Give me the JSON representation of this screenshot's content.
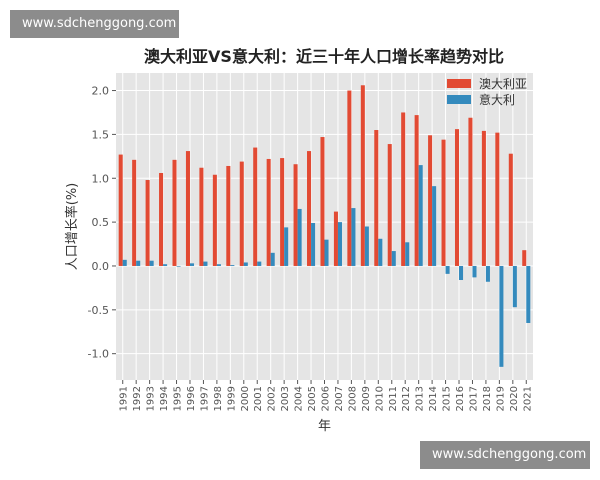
{
  "watermarks": {
    "top": "www.sdchenggong.com",
    "bottom": "www.sdchenggong.com"
  },
  "colors": {
    "australia": "#e24a33",
    "italy": "#348abd",
    "plot_bg": "#e5e5e5",
    "grid": "#ffffff",
    "text": "#555555"
  },
  "chart_data": {
    "type": "bar",
    "title": "澳大利亚VS意大利：近三十年人口增长率趋势对比",
    "xlabel": "年",
    "ylabel": "人口增长率(%)",
    "ylim": [
      -1.3,
      2.2
    ],
    "yticks": [
      -1.0,
      -0.5,
      0.0,
      0.5,
      1.0,
      1.5,
      2.0
    ],
    "ytick_labels": [
      "-1.0",
      "-0.5",
      "0.0",
      "0.5",
      "1.0",
      "1.5",
      "2.0"
    ],
    "grid": true,
    "legend_position": "top-right",
    "categories": [
      "1991",
      "1992",
      "1993",
      "1994",
      "1995",
      "1996",
      "1997",
      "1998",
      "1999",
      "2000",
      "2001",
      "2002",
      "2003",
      "2004",
      "2005",
      "2006",
      "2007",
      "2008",
      "2009",
      "2010",
      "2011",
      "2012",
      "2013",
      "2014",
      "2015",
      "2016",
      "2017",
      "2018",
      "2019",
      "2020",
      "2021"
    ],
    "series": [
      {
        "name": "澳大利亚",
        "color": "#e24a33",
        "values": [
          1.27,
          1.21,
          0.98,
          1.06,
          1.21,
          1.31,
          1.12,
          1.04,
          1.14,
          1.19,
          1.35,
          1.22,
          1.23,
          1.16,
          1.31,
          1.47,
          0.62,
          2.0,
          2.06,
          1.55,
          1.39,
          1.75,
          1.72,
          1.49,
          1.44,
          1.56,
          1.69,
          1.54,
          1.52,
          1.28,
          0.18
        ]
      },
      {
        "name": "意大利",
        "color": "#348abd",
        "values": [
          0.07,
          0.06,
          0.06,
          0.02,
          0.0,
          0.03,
          0.05,
          0.02,
          0.01,
          0.04,
          0.05,
          0.15,
          0.44,
          0.65,
          0.49,
          0.3,
          0.5,
          0.66,
          0.45,
          0.31,
          0.17,
          0.27,
          1.15,
          0.91,
          -0.09,
          -0.16,
          -0.13,
          -0.18,
          -1.15,
          -0.47,
          -0.65
        ]
      }
    ]
  }
}
